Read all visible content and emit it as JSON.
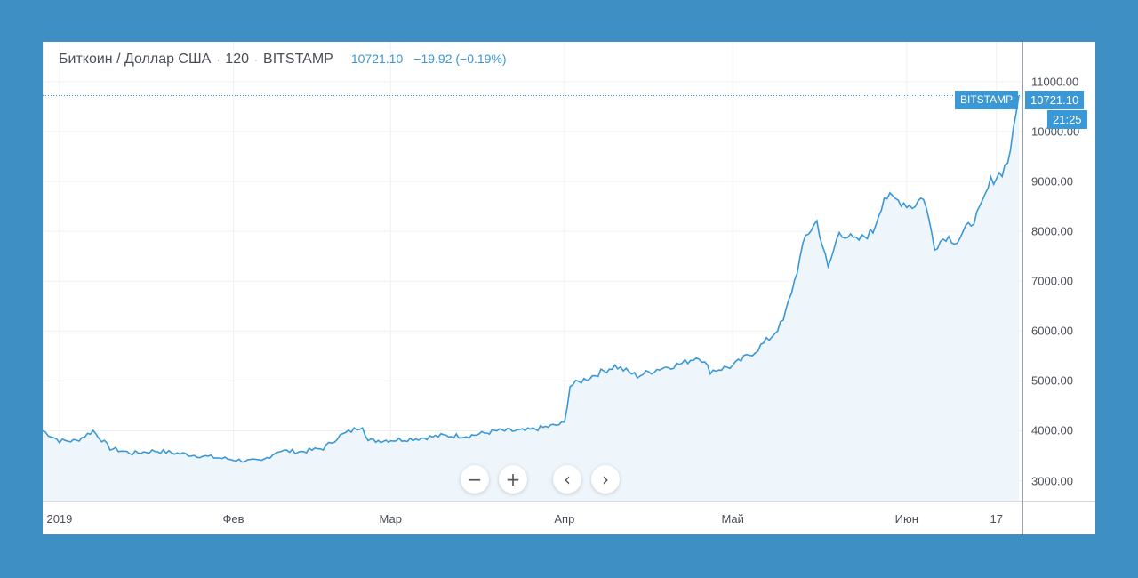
{
  "header": {
    "symbol": "Биткоин / Доллар США",
    "interval": "120",
    "exchange": "BITSTAMP",
    "price": "10721.10",
    "change": "−19.92 (−0.19%)",
    "sep": "·"
  },
  "tags": {
    "source": "BITSTAMP",
    "price": "10721.10",
    "time": "21:25"
  },
  "controls": {
    "zoom_out": "−",
    "zoom_in": "+",
    "scroll_left": "‹",
    "scroll_right": "›"
  },
  "colors": {
    "line": "#3a98d6",
    "fill": "#eef5fb",
    "background": "#3d8fc4"
  },
  "chart_data": {
    "type": "area",
    "title": "Биткоин / Доллар США · 120 · BITSTAMP",
    "x_labels": [
      "2019",
      "Фев",
      "Мар",
      "Апр",
      "Май",
      "Июн",
      "17"
    ],
    "y_ticks": [
      "11000.00",
      "10000.00",
      "9000.00",
      "8000.00",
      "7000.00",
      "6000.00",
      "5000.00",
      "4000.00",
      "3000.00"
    ],
    "ylim": [
      2600,
      11800
    ],
    "grid": true,
    "series": [
      {
        "values": [
          [
            "2018-12-29",
            4000
          ],
          [
            "2019-01-01",
            3800
          ],
          [
            "2019-01-04",
            3800
          ],
          [
            "2019-01-07",
            4000
          ],
          [
            "2019-01-10",
            3650
          ],
          [
            "2019-01-14",
            3550
          ],
          [
            "2019-01-18",
            3600
          ],
          [
            "2019-01-22",
            3550
          ],
          [
            "2019-01-26",
            3500
          ],
          [
            "2019-01-30",
            3450
          ],
          [
            "2019-02-03",
            3400
          ],
          [
            "2019-02-06",
            3390
          ],
          [
            "2019-02-09",
            3600
          ],
          [
            "2019-02-13",
            3580
          ],
          [
            "2019-02-17",
            3650
          ],
          [
            "2019-02-20",
            3900
          ],
          [
            "2019-02-24",
            4100
          ],
          [
            "2019-02-25",
            3800
          ],
          [
            "2019-03-02",
            3820
          ],
          [
            "2019-03-06",
            3850
          ],
          [
            "2019-03-10",
            3900
          ],
          [
            "2019-03-15",
            3900
          ],
          [
            "2019-03-20",
            4000
          ],
          [
            "2019-03-25",
            4000
          ],
          [
            "2019-03-30",
            4100
          ],
          [
            "2019-04-01",
            4150
          ],
          [
            "2019-04-02",
            4900
          ],
          [
            "2019-04-06",
            5100
          ],
          [
            "2019-04-10",
            5300
          ],
          [
            "2019-04-14",
            5100
          ],
          [
            "2019-04-18",
            5250
          ],
          [
            "2019-04-22",
            5350
          ],
          [
            "2019-04-25",
            5500
          ],
          [
            "2019-04-27",
            5200
          ],
          [
            "2019-05-01",
            5300
          ],
          [
            "2019-05-05",
            5600
          ],
          [
            "2019-05-08",
            5900
          ],
          [
            "2019-05-10",
            6200
          ],
          [
            "2019-05-12",
            7000
          ],
          [
            "2019-05-14",
            7900
          ],
          [
            "2019-05-16",
            8200
          ],
          [
            "2019-05-18",
            7250
          ],
          [
            "2019-05-20",
            8000
          ],
          [
            "2019-05-23",
            7800
          ],
          [
            "2019-05-26",
            8000
          ],
          [
            "2019-05-28",
            8700
          ],
          [
            "2019-05-31",
            8600
          ],
          [
            "2019-06-02",
            8500
          ],
          [
            "2019-06-04",
            8700
          ],
          [
            "2019-06-06",
            7700
          ],
          [
            "2019-06-08",
            7900
          ],
          [
            "2019-06-10",
            7800
          ],
          [
            "2019-06-12",
            8100
          ],
          [
            "2019-06-14",
            8400
          ],
          [
            "2019-06-16",
            9000
          ],
          [
            "2019-06-18",
            9200
          ],
          [
            "2019-06-19",
            9400
          ],
          [
            "2019-06-20",
            9950
          ],
          [
            "2019-06-21",
            10721
          ]
        ]
      }
    ]
  }
}
